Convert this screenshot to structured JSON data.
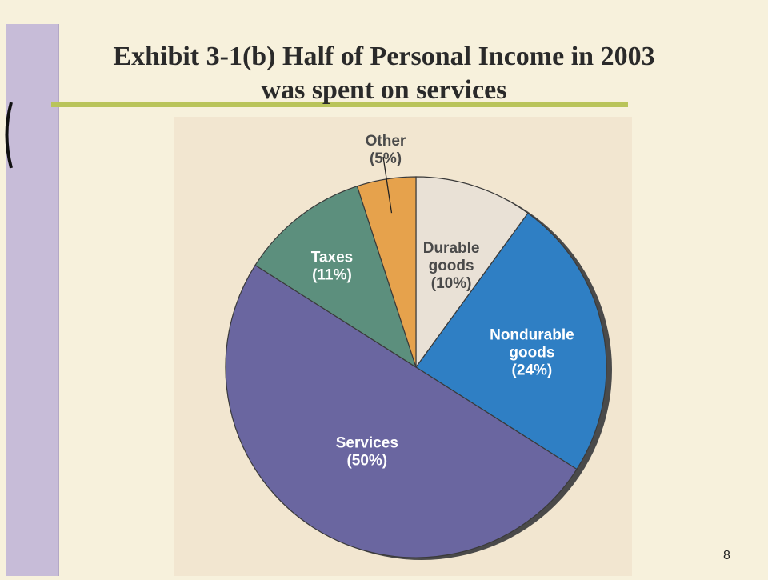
{
  "slide": {
    "title_line1": "Exhibit 3-1(b) Half of Personal Income in 2003",
    "title_line2": "was spent on services",
    "page_number": "8"
  },
  "chart_data": {
    "type": "pie",
    "title": "Exhibit 3-1(b) Half of Personal Income in 2003 was spent on services",
    "slices": [
      {
        "label": "Durable goods",
        "value": 10,
        "display": "(10%)",
        "color": "#e9e1d6"
      },
      {
        "label": "Nondurable goods",
        "value": 24,
        "display": "(24%)",
        "color": "#2f7fc4"
      },
      {
        "label": "Services",
        "value": 50,
        "display": "(50%)",
        "color": "#6a66a0"
      },
      {
        "label": "Taxes",
        "value": 11,
        "display": "(11%)",
        "color": "#5c8f7d"
      },
      {
        "label": "Other",
        "value": 5,
        "display": "(5%)",
        "color": "#e6a24c"
      }
    ],
    "start_angle_deg": 0,
    "direction": "clockwise"
  },
  "colors": {
    "background": "#f7f1dc",
    "left_bar": "#c7bcd8",
    "accent_line": "#b9c45a",
    "chart_panel": "#f2e6d0"
  }
}
